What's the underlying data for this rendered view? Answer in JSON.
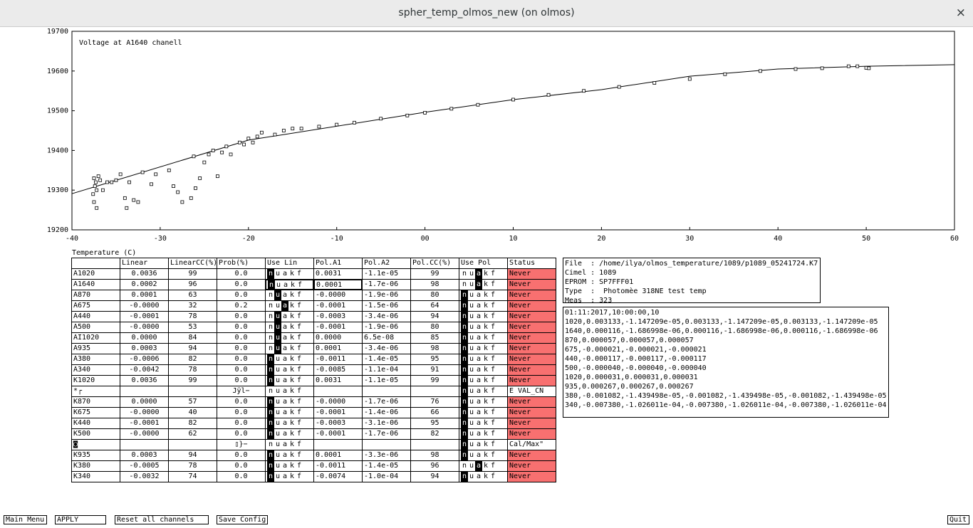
{
  "window_title": "spher_temp_olmos_new (on olmos)",
  "close_icon": "×",
  "chart_data": {
    "type": "scatter",
    "title": "Voltage at A1640 chanell",
    "x_label": "Temperature (C)",
    "x": [
      -37.5,
      -37.3,
      -37.2,
      -37.4,
      -37,
      -36.8,
      -37.6,
      -37.5,
      -37.2,
      -36.5,
      -36,
      -35.5,
      -35,
      -34.5,
      -34,
      -33.8,
      -33,
      -32.5,
      -33.5,
      -32,
      -31,
      -30.5,
      -29,
      -28.5,
      -28,
      -27.5,
      -26.5,
      -26,
      -26.2,
      -25,
      -25.5,
      -24.5,
      -24,
      -23.5,
      -23,
      -22.5,
      -22,
      -21,
      -20.5,
      -20,
      -19.5,
      -19,
      -18.5,
      -17,
      -16,
      -15,
      -14,
      -12,
      -10,
      -8,
      -5,
      -2,
      0,
      3,
      6,
      10,
      14,
      18,
      22,
      26,
      30,
      34,
      38,
      42,
      45,
      48,
      49,
      50,
      50.3
    ],
    "values": [
      19330,
      19320,
      19300,
      19310,
      19335,
      19325,
      19290,
      19270,
      19255,
      19300,
      19320,
      19320,
      19325,
      19340,
      19280,
      19255,
      19275,
      19270,
      19320,
      19345,
      19315,
      19340,
      19350,
      19310,
      19295,
      19270,
      19280,
      19305,
      19385,
      19370,
      19330,
      19390,
      19400,
      19335,
      19395,
      19410,
      19390,
      19420,
      19415,
      19430,
      19420,
      19435,
      19445,
      19440,
      19450,
      19455,
      19455,
      19460,
      19465,
      19470,
      19480,
      19488,
      19495,
      19505,
      19515,
      19528,
      19540,
      19550,
      19560,
      19570,
      19580,
      19592,
      19600,
      19605,
      19607,
      19612,
      19612,
      19608,
      19607
    ],
    "line_x": [
      -40,
      -20,
      0,
      10,
      20,
      30,
      40,
      50,
      60
    ],
    "line_values": [
      19291,
      19426,
      19496,
      19528,
      19553,
      19587,
      19605,
      19612,
      19616
    ],
    "xlim": [
      -40,
      60
    ],
    "xticks": [
      -40,
      -30,
      -20,
      -10,
      {
        "value": 0,
        "label": "00"
      },
      10,
      20,
      30,
      40,
      50,
      60
    ],
    "ylim": [
      19200,
      19700
    ],
    "yticks": [
      19200,
      19300,
      19400,
      19500,
      19600,
      19700
    ],
    "color": "#000000"
  },
  "table": {
    "header": [
      "Linear",
      "LinearCC(%)",
      "Prob(%)",
      "Use Lin",
      "Pol.A1",
      "Pol.A2",
      "Pol.CC(%)",
      "Use Pol",
      "Status"
    ],
    "use_letters": [
      "n",
      "u",
      "a",
      "k",
      "f"
    ],
    "rows": [
      {
        "cells": [
          "A1020",
          "0.0036",
          "99",
          "0.0",
          "0.0031",
          "-1.1e-05",
          "99",
          "Never"
        ],
        "lin_on": 0,
        "pol_on": 2,
        "alert": true
      },
      {
        "cells": [
          "A1640",
          "0.0002",
          "96",
          "0.0",
          "0.0001",
          "-1.7e-06",
          "98",
          "Never"
        ],
        "lin_on": 0,
        "pol_on": 2,
        "alert": true
      },
      {
        "cells": [
          "A870",
          "0.0001",
          "63",
          "0.0",
          "-0.0000",
          "-1.9e-06",
          "80",
          "Never"
        ],
        "lin_on": 1,
        "pol_on": 0,
        "alert": true
      },
      {
        "cells": [
          "A675",
          "-0.0000",
          "32",
          "0.2",
          "-0.0001",
          "-1.5e-06",
          "64",
          "Never"
        ],
        "lin_on": 2,
        "pol_on": 0,
        "alert": true
      },
      {
        "cells": [
          "A440",
          "-0.0001",
          "78",
          "0.0",
          "-0.0003",
          "-3.4e-06",
          "94",
          "Never"
        ],
        "lin_on": 1,
        "pol_on": 0,
        "alert": true
      },
      {
        "cells": [
          "A500",
          "-0.0000",
          "53",
          "0.0",
          "-0.0001",
          "-1.9e-06",
          "80",
          "Never"
        ],
        "lin_on": 1,
        "pol_on": 0,
        "alert": true
      },
      {
        "cells": [
          "AI1020",
          "0.0000",
          "84",
          "0.0",
          "0.0000",
          "6.5e-08",
          "85",
          "Never"
        ],
        "lin_on": 1,
        "pol_on": 0,
        "alert": true
      },
      {
        "cells": [
          "A935",
          "0.0003",
          "94",
          "0.0",
          "0.0001",
          "-3.4e-06",
          "98",
          "Never"
        ],
        "lin_on": 1,
        "pol_on": 0,
        "alert": true
      },
      {
        "cells": [
          "A380",
          "-0.0006",
          "82",
          "0.0",
          "-0.0011",
          "-1.4e-05",
          "95",
          "Never"
        ],
        "lin_on": 0,
        "pol_on": 0,
        "alert": true
      },
      {
        "cells": [
          "A340",
          "-0.0042",
          "78",
          "0.0",
          "-0.0085",
          "-1.1e-04",
          "91",
          "Never"
        ],
        "lin_on": 0,
        "pol_on": 0,
        "alert": true
      },
      {
        "cells": [
          "K1020",
          "0.0036",
          "99",
          "0.0",
          "0.0031",
          "-1.1e-05",
          "99",
          "Never"
        ],
        "lin_on": 0,
        "pol_on": 0,
        "alert": true
      },
      {
        "cells": [
          "*┌",
          null,
          null,
          "Jÿl−",
          null,
          null,
          null,
          "E VAL_CN"
        ],
        "lin_on": null,
        "pol_on": 0,
        "alert": false
      },
      {
        "cells": [
          "K870",
          "0.0000",
          "57",
          "0.0",
          "-0.0000",
          "-1.7e-06",
          "76",
          "Never"
        ],
        "lin_on": 0,
        "pol_on": 0,
        "alert": true
      },
      {
        "cells": [
          "K675",
          "-0.0000",
          "40",
          "0.0",
          "-0.0001",
          "-1.4e-06",
          "66",
          "Never"
        ],
        "lin_on": 0,
        "pol_on": 0,
        "alert": true
      },
      {
        "cells": [
          "K440",
          "-0.0001",
          "82",
          "0.0",
          "-0.0003",
          "-3.1e-06",
          "95",
          "Never"
        ],
        "lin_on": 0,
        "pol_on": 0,
        "alert": true
      },
      {
        "cells": [
          "K500",
          "-0.0000",
          "62",
          "0.0",
          "-0.0001",
          "-1.7e-06",
          "82",
          "Never"
        ],
        "lin_on": 0,
        "pol_on": 0,
        "alert": true
      },
      {
        "cells": [
          "◙",
          null,
          null,
          "▯}−",
          null,
          null,
          null,
          "Cal/Max\""
        ],
        "lin_on": null,
        "pol_on": 0,
        "alert": false
      },
      {
        "cells": [
          "K935",
          "0.0003",
          "94",
          "0.0",
          "0.0001",
          "-3.3e-06",
          "98",
          "Never"
        ],
        "lin_on": 0,
        "pol_on": 0,
        "alert": true
      },
      {
        "cells": [
          "K380",
          "-0.0005",
          "78",
          "0.0",
          "-0.0011",
          "-1.4e-05",
          "96",
          "Never"
        ],
        "lin_on": 0,
        "pol_on": 2,
        "alert": true
      },
      {
        "cells": [
          "K340",
          "-0.0032",
          "74",
          "0.0",
          "-0.0074",
          "-1.0e-04",
          "94",
          "Never"
        ],
        "lin_on": 0,
        "pol_on": 0,
        "alert": true
      }
    ]
  },
  "info": [
    "File  : /home/ilya/olmos_temperature/1089/p1089_05241724.K7",
    "Cimel : 1089",
    "EPROM : SP7FFF01",
    "Type  :  Photomèe 318NE test temp",
    "Meas  : 323"
  ],
  "log": [
    "01:11:2017,10:00:00,10",
    "1020,0.003133,-1.147209e-05,0.003133,-1.147209e-05,0.003133,-1.147209e-05",
    "1640,0.000116,-1.686998e-06,0.000116,-1.686998e-06,0.000116,-1.686998e-06",
    "870,0.000057,0.000057,0.000057",
    "675,-0.000021,-0.000021,-0.000021",
    "440,-0.000117,-0.000117,-0.000117",
    "500,-0.000040,-0.000040,-0.000040",
    "1020,0.000031,0.000031,0.000031",
    "935,0.000267,0.000267,0.000267",
    "380,-0.001082,-1.439498e-05,-0.001082,-1.439498e-05,-0.001082,-1.439498e-05",
    "340,-0.007380,-1.026011e-04,-0.007380,-1.026011e-04,-0.007380,-1.026011e-04"
  ],
  "buttons": [
    "Main Menu",
    "APPLY",
    "Reset all channels",
    "Save Config",
    "Quit"
  ]
}
